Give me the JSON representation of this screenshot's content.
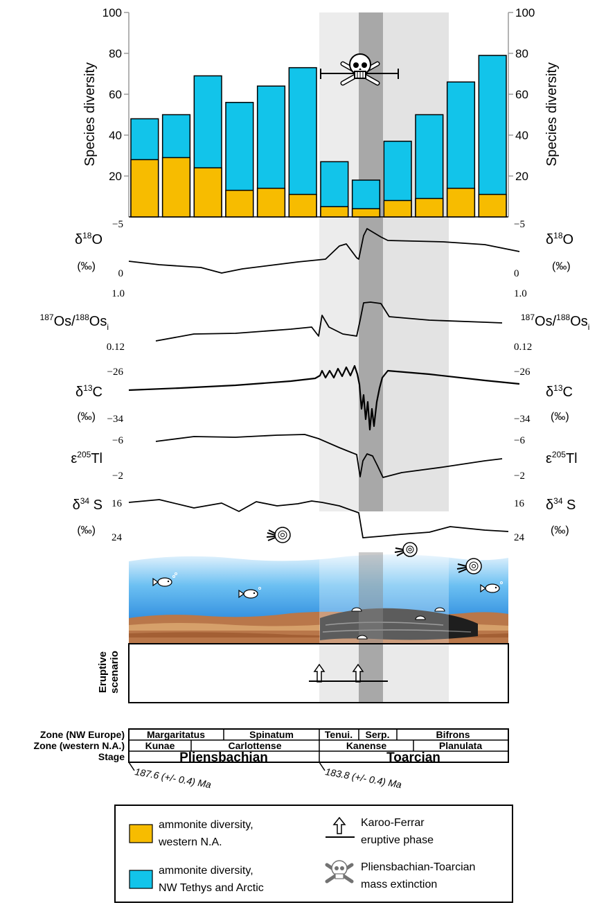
{
  "chart_data": [
    {
      "type": "bar",
      "ylabel_left": "Species diversity",
      "ylabel_right": "Species diversity",
      "ylim": [
        0,
        100
      ],
      "yticks": [
        20,
        40,
        60,
        80,
        100
      ],
      "yticks_right": [
        20,
        40,
        60,
        80,
        100
      ],
      "legend_placement": "bottom",
      "series": [
        {
          "name": "ammonite diversity, NW Tethys and Arctic",
          "color": "#12c4ea",
          "values": [
            48,
            50,
            69,
            56,
            64,
            73,
            27,
            18,
            37,
            50,
            66,
            79
          ]
        },
        {
          "name": "ammonite diversity, western N.A.",
          "color": "#f7bc00",
          "values": [
            28,
            29,
            24,
            13,
            14,
            11,
            5,
            4,
            8,
            9,
            14,
            11
          ]
        }
      ],
      "extinction_label": "Pliensbachian-Toarcian mass extinction"
    },
    {
      "type": "line",
      "panels": [
        {
          "label_main": "δ",
          "label_sup": "18",
          "label_tail": "O",
          "unit": "(‰)",
          "tick_top": "−5",
          "tick_bottom": "0",
          "tick_top_right": "−5",
          "tick_bottom_right": "0",
          "points": [
            [
              186,
              377
            ],
            [
              230,
              382
            ],
            [
              290,
              386
            ],
            [
              320,
              394
            ],
            [
              350,
              388
            ],
            [
              430,
              378
            ],
            [
              470,
              374
            ],
            [
              490,
              355
            ],
            [
              500,
              352
            ],
            [
              515,
              372
            ],
            [
              518,
              374
            ],
            [
              525,
              340
            ],
            [
              530,
              330
            ],
            [
              550,
              342
            ],
            [
              560,
              347
            ],
            [
              640,
              349
            ],
            [
              700,
              353
            ],
            [
              750,
              363
            ]
          ]
        },
        {
          "label_main": "",
          "label_sup": "187",
          "label_tail": "Os/",
          "label_sup2": "188",
          "label_tail2": "Os",
          "label_sub": "i",
          "unit": "",
          "tick_top": "1.0",
          "tick_bottom": "0.12",
          "tick_top_right": "1.0",
          "tick_bottom_right": "0.12",
          "points": [
            [
              225,
              492
            ],
            [
              280,
              482
            ],
            [
              340,
              481
            ],
            [
              420,
              475
            ],
            [
              450,
              472
            ],
            [
              460,
              485
            ],
            [
              465,
              455
            ],
            [
              475,
              472
            ],
            [
              495,
              482
            ],
            [
              515,
              485
            ],
            [
              520,
              462
            ],
            [
              525,
              437
            ],
            [
              535,
              436
            ],
            [
              550,
              438
            ],
            [
              562,
              457
            ],
            [
              620,
              462
            ],
            [
              700,
              465
            ],
            [
              725,
              466
            ]
          ]
        },
        {
          "label_main": "δ",
          "label_sup": "13",
          "label_tail": "C",
          "unit": "(‰)",
          "tick_top": "−26",
          "tick_bottom": "−34",
          "tick_top_right": "−26",
          "tick_bottom_right": "−34",
          "points": [
            [
              186,
              563
            ],
            [
              260,
              560
            ],
            [
              340,
              556
            ],
            [
              420,
              550
            ],
            [
              455,
              546
            ],
            [
              462,
              542
            ],
            [
              465,
              535
            ],
            [
              470,
              545
            ],
            [
              476,
              535
            ],
            [
              482,
              545
            ],
            [
              488,
              532
            ],
            [
              494,
              543
            ],
            [
              500,
              530
            ],
            [
              506,
              542
            ],
            [
              512,
              528
            ],
            [
              516,
              540
            ],
            [
              519,
              555
            ],
            [
              522,
              590
            ],
            [
              525,
              570
            ],
            [
              528,
              605
            ],
            [
              531,
              580
            ],
            [
              534,
              620
            ],
            [
              537,
              590
            ],
            [
              540,
              615
            ],
            [
              544,
              580
            ],
            [
              548,
              560
            ],
            [
              552,
              545
            ],
            [
              560,
              535
            ],
            [
              620,
              540
            ],
            [
              700,
              549
            ],
            [
              750,
              554
            ]
          ]
        },
        {
          "label_main": "ε",
          "label_sup": "205",
          "label_tail": "Tl",
          "unit": "",
          "tick_top": "−6",
          "tick_bottom": "−2",
          "tick_top_right": "−6",
          "tick_bottom_right": "−2",
          "points": [
            [
              225,
              637
            ],
            [
              280,
              630
            ],
            [
              340,
              631
            ],
            [
              400,
              628
            ],
            [
              440,
              627
            ],
            [
              460,
              633
            ],
            [
              490,
              646
            ],
            [
              515,
              656
            ],
            [
              520,
              688
            ],
            [
              524,
              665
            ],
            [
              530,
              655
            ],
            [
              538,
              658
            ],
            [
              545,
              672
            ],
            [
              553,
              689
            ],
            [
              580,
              682
            ],
            [
              640,
              674
            ],
            [
              700,
              665
            ],
            [
              725,
              662
            ]
          ]
        },
        {
          "label_main": "δ",
          "label_sup": "34",
          "label_tail": " S",
          "unit": "(‰)",
          "tick_top": "16",
          "tick_bottom": "24",
          "tick_top_right": "16",
          "tick_bottom_right": "24",
          "points": [
            [
              186,
              725
            ],
            [
              230,
              721
            ],
            [
              280,
              733
            ],
            [
              320,
              726
            ],
            [
              345,
              738
            ],
            [
              370,
              724
            ],
            [
              400,
              730
            ],
            [
              430,
              727
            ],
            [
              450,
              723
            ],
            [
              465,
              725
            ],
            [
              490,
              730
            ],
            [
              518,
              740
            ],
            [
              524,
              776
            ],
            [
              548,
              774
            ],
            [
              580,
              771
            ],
            [
              620,
              768
            ],
            [
              650,
              760
            ],
            [
              700,
              765
            ],
            [
              734,
              767
            ]
          ]
        }
      ]
    }
  ],
  "eruptive": {
    "label_line1": "Eruptive",
    "label_line2": "scenario"
  },
  "zones": {
    "nw_europe_label": "Zone (NW Europe)",
    "western_na_label": "Zone (western N.A.)",
    "stage_label": "Stage",
    "nw_europe": [
      "Margaritatus",
      "Spinatum",
      "Tenui.",
      "Serp.",
      "Bifrons"
    ],
    "western_na": [
      "Kunae",
      "Carlottense",
      "Kanense",
      "Planulata"
    ],
    "stages": [
      "Pliensbachian",
      "Toarcian"
    ]
  },
  "dates": {
    "left": "187.6 (+/- 0.4) Ma",
    "right": "183.8 (+/- 0.4) Ma"
  },
  "legend": {
    "orange_line1": "ammonite diversity,",
    "orange_line2": "western N.A.",
    "blue_line1": "ammonite diversity,",
    "blue_line2": "NW Tethys and Arctic",
    "karoo_line1": "Karoo-Ferrar",
    "karoo_line2": "eruptive phase",
    "ext_line1": "Pliensbachian-Toarcian",
    "ext_line2": "mass extinction"
  }
}
